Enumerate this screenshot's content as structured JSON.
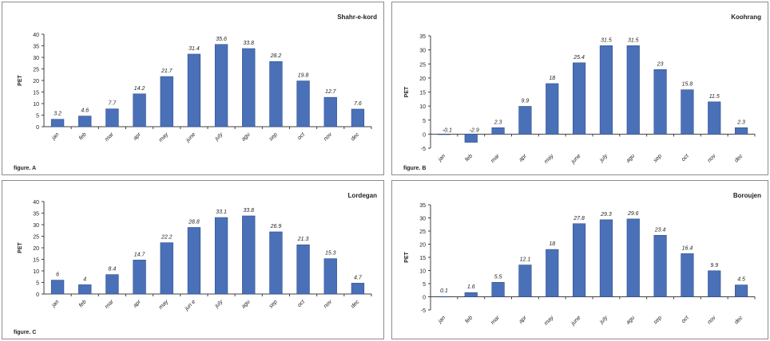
{
  "colors": {
    "bar": "#4a70b8",
    "bar_edge": "#2f4f8f",
    "axis": "#404040",
    "text": "#222222"
  },
  "chart_data": [
    {
      "type": "bar",
      "title": "Shahr-e-kord",
      "figure_label": "figure. A",
      "ylabel": "PET",
      "xlabel": "",
      "categories": [
        "jan",
        "feb",
        "mar",
        "apr",
        "may",
        "june",
        "july",
        "agu",
        "sep",
        "oct",
        "nov",
        "dec"
      ],
      "values": [
        3.2,
        4.6,
        7.7,
        14.2,
        21.7,
        31.4,
        35.6,
        33.8,
        28.2,
        19.8,
        12.7,
        7.6
      ],
      "value_labels": [
        "3.2",
        "4.6",
        "7.7",
        "14.2",
        "21.7",
        "31.4",
        "35.6",
        "33.8",
        "28.2",
        "19.8",
        "12.7",
        "7.6"
      ],
      "ylim": [
        0,
        40
      ],
      "yticks": [
        0,
        5,
        10,
        15,
        20,
        25,
        30,
        35,
        40
      ],
      "grid": false
    },
    {
      "type": "bar",
      "title": "Koohrang",
      "figure_label": "figure. B",
      "ylabel": "PET",
      "xlabel": "",
      "categories": [
        "jan",
        "feb",
        "mar",
        "apr",
        "may",
        "june",
        "july",
        "agu",
        "sep",
        "oct",
        "nov",
        "dec"
      ],
      "values": [
        -0.1,
        -2.9,
        2.3,
        9.9,
        18,
        25.4,
        31.5,
        31.5,
        23,
        15.8,
        11.5,
        2.3
      ],
      "value_labels": [
        "-0.1",
        "-2.9",
        "2.3",
        "9.9",
        "18",
        "25.4",
        "31.5",
        "31.5",
        "23",
        "15.8",
        "11.5",
        "2.3"
      ],
      "ylim": [
        -5,
        35
      ],
      "yticks": [
        -5,
        0,
        5,
        10,
        15,
        20,
        25,
        30,
        35
      ],
      "grid": false
    },
    {
      "type": "bar",
      "title": "Lordegan",
      "figure_label": "figure. C",
      "ylabel": "PET",
      "xlabel": "",
      "categories": [
        "jan",
        "feb",
        "mar",
        "apr",
        "may",
        "jun e",
        "july",
        "agu",
        "sep",
        "oct",
        "nov",
        "dec"
      ],
      "values": [
        6,
        4,
        8.4,
        14.7,
        22.2,
        28.8,
        33.1,
        33.8,
        26.9,
        21.3,
        15.3,
        4.7
      ],
      "value_labels": [
        "6",
        "4",
        "8.4",
        "14.7",
        "22.2",
        "28.8",
        "33.1",
        "33.8",
        "26.9",
        "21.3",
        "15.3",
        "4.7"
      ],
      "ylim": [
        0,
        40
      ],
      "yticks": [
        0,
        5,
        10,
        15,
        20,
        25,
        30,
        35,
        40
      ],
      "grid": false
    },
    {
      "type": "bar",
      "title": "Boroujen",
      "figure_label": "",
      "ylabel": "PET",
      "xlabel": "",
      "categories": [
        "jan",
        "feb",
        "mar",
        "apr",
        "may",
        "june",
        "july",
        "agu",
        "sep",
        "oct",
        "nov",
        "dec"
      ],
      "values": [
        0.1,
        1.6,
        5.5,
        12.1,
        18,
        27.8,
        29.3,
        29.6,
        23.4,
        16.4,
        9.9,
        4.5
      ],
      "value_labels": [
        "0.1",
        "1.6",
        "5.5",
        "12.1",
        "18",
        "27.8",
        "29.3",
        "29.6",
        "23.4",
        "16.4",
        "9.9",
        "4.5"
      ],
      "ylim": [
        -5,
        35
      ],
      "yticks": [
        -5,
        0,
        5,
        10,
        15,
        20,
        25,
        30,
        35
      ],
      "grid": false
    }
  ]
}
